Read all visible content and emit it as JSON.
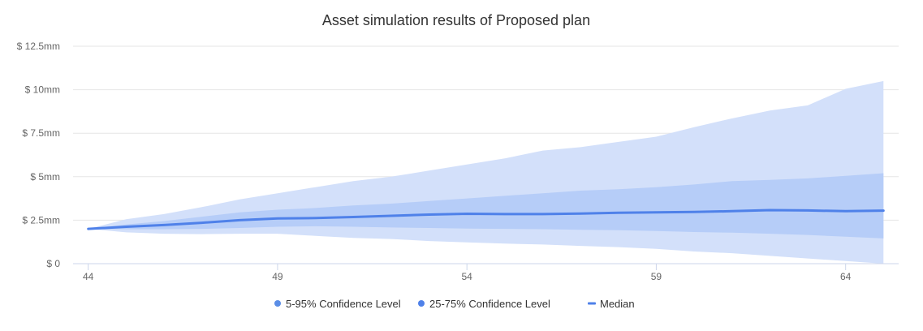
{
  "chart_data": {
    "type": "area",
    "title": "Asset simulation results of Proposed plan",
    "xlabel": "",
    "ylabel": "",
    "x": [
      44,
      45,
      46,
      47,
      48,
      49,
      50,
      51,
      52,
      53,
      54,
      55,
      56,
      57,
      58,
      59,
      60,
      61,
      62,
      63,
      64,
      65
    ],
    "x_ticks": [
      44,
      49,
      54,
      59,
      64
    ],
    "x_tick_labels": [
      "44",
      "49",
      "54",
      "59",
      "64"
    ],
    "xlim": [
      43.6,
      65.4
    ],
    "y_ticks": [
      0,
      2.5,
      5,
      7.5,
      10,
      12.5
    ],
    "y_tick_labels": [
      "$ 0",
      "$ 2.5mm",
      "$ 5mm",
      "$ 7.5mm",
      "$ 10mm",
      "$ 12.5mm"
    ],
    "ylim": [
      0,
      12.5
    ],
    "y_unit": "$ mm",
    "grid": true,
    "legend_position": "bottom-center",
    "series": [
      {
        "name": "5-95% Confidence Level",
        "kind": "band",
        "color": "#d3e0fa",
        "legend_color": "#5a8de6",
        "low": [
          2.0,
          1.8,
          1.72,
          1.7,
          1.72,
          1.72,
          1.6,
          1.48,
          1.42,
          1.3,
          1.22,
          1.15,
          1.1,
          1.02,
          0.95,
          0.85,
          0.7,
          0.6,
          0.45,
          0.3,
          0.15,
          0.0
        ],
        "high": [
          2.0,
          2.55,
          2.85,
          3.25,
          3.7,
          4.05,
          4.4,
          4.75,
          5.0,
          5.35,
          5.7,
          6.05,
          6.5,
          6.7,
          7.0,
          7.3,
          7.85,
          8.35,
          8.8,
          9.1,
          10.05,
          10.5
        ]
      },
      {
        "name": "25-75% Confidence Level",
        "kind": "band",
        "color": "#b6cdf8",
        "legend_color": "#4f81e9",
        "low": [
          2.0,
          1.98,
          1.98,
          2.0,
          2.05,
          2.12,
          2.15,
          2.12,
          2.08,
          2.05,
          2.02,
          2.0,
          1.98,
          1.95,
          1.92,
          1.88,
          1.82,
          1.78,
          1.72,
          1.65,
          1.55,
          1.45
        ],
        "high": [
          2.0,
          2.25,
          2.45,
          2.7,
          2.95,
          3.1,
          3.2,
          3.35,
          3.45,
          3.6,
          3.75,
          3.9,
          4.05,
          4.2,
          4.28,
          4.4,
          4.55,
          4.75,
          4.82,
          4.9,
          5.05,
          5.2
        ]
      },
      {
        "name": "Median",
        "kind": "line",
        "color": "#4f81e9",
        "values": [
          2.0,
          2.12,
          2.22,
          2.35,
          2.5,
          2.6,
          2.62,
          2.68,
          2.75,
          2.82,
          2.87,
          2.85,
          2.85,
          2.88,
          2.93,
          2.95,
          2.97,
          3.02,
          3.08,
          3.06,
          3.02,
          3.05
        ]
      }
    ]
  }
}
